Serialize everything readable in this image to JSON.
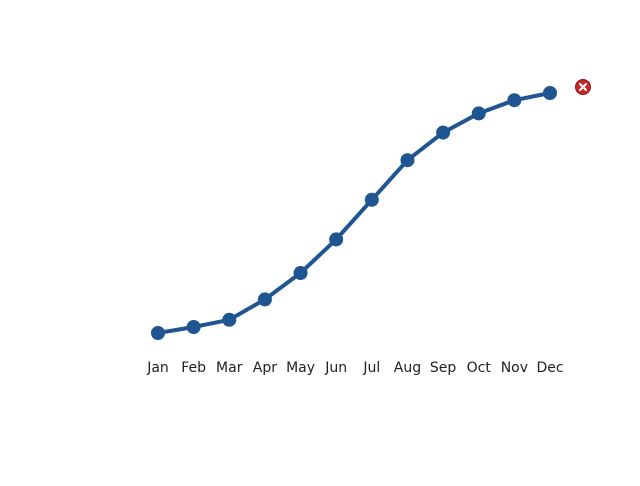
{
  "chart_data": {
    "type": "line",
    "categories": [
      "Jan",
      "Feb",
      "Mar",
      "Apr",
      "May",
      "Jun",
      "Jul",
      "Aug",
      "Sep",
      "Oct",
      "Nov",
      "Dec"
    ],
    "series": [
      {
        "color": "#1f5591",
        "values": [
          0,
          2.5,
          5.5,
          14,
          25,
          39,
          55.5,
          72,
          83.5,
          91.5,
          97,
          100
        ]
      }
    ],
    "ylim": [
      0,
      100
    ]
  }
}
